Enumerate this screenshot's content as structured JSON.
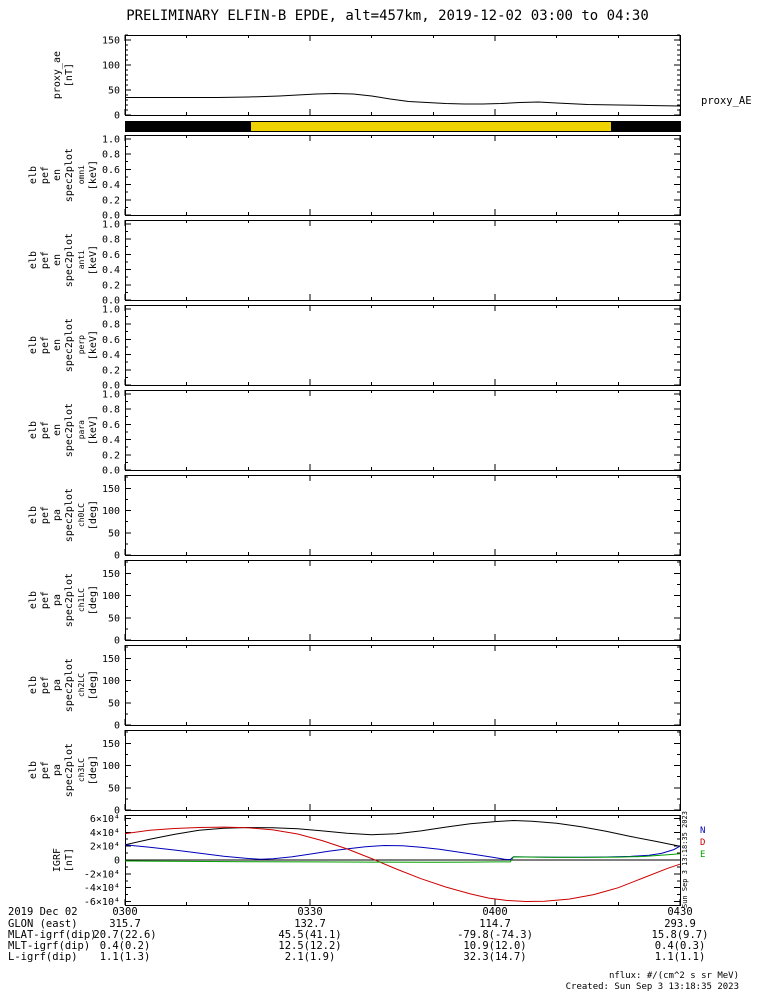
{
  "title": "PRELIMINARY ELFIN-B EPDE, alt=457km, 2019-12-02 03:00 to 04:30",
  "proxy_right_label": "proxy_AE",
  "side_timestamp": "Sun Sep 3 13:18:35 2023",
  "footer": {
    "nflux": "nflux: #/(cm^2 s sr MeV)",
    "created": "Created: Sun Sep  3 13:18:35 2023"
  },
  "colorbar": {
    "segments": [
      {
        "color": "#000000",
        "from": 0.0,
        "to": 0.227
      },
      {
        "color": "#eed202",
        "from": 0.227,
        "to": 0.876
      },
      {
        "color": "#000000",
        "from": 0.876,
        "to": 1.0
      }
    ]
  },
  "xaxis": {
    "xlim": [
      0,
      90
    ],
    "major_minutes": [
      0,
      30,
      60,
      90
    ],
    "minor_step": 10,
    "labels": [
      "0300",
      "0330",
      "0400",
      "0430"
    ],
    "date": "2019 Dec 02"
  },
  "bottom_table": {
    "rows": [
      {
        "label": "2019 Dec 02",
        "values": [
          "0300",
          "0330",
          "0400",
          "0430"
        ]
      },
      {
        "label": "GLON (east)",
        "values": [
          "315.7",
          "132.7",
          "114.7",
          "293.9"
        ]
      },
      {
        "label": "MLAT-igrf(dip)",
        "values": [
          "20.7(22.6)",
          "45.5(41.1)",
          "-79.8(-74.3)",
          "15.8(9.7)"
        ]
      },
      {
        "label": "MLT-igrf(dip)",
        "values": [
          "0.4(0.2)",
          "12.5(12.2)",
          "10.9(12.0)",
          "0.4(0.3)"
        ]
      },
      {
        "label": "L-igrf(dip)",
        "values": [
          "1.1(1.3)",
          "2.1(1.9)",
          "32.3(14.7)",
          "1.1(1.1)"
        ]
      }
    ]
  },
  "chart_data": [
    {
      "name": "proxy_ae",
      "type": "line",
      "title": "proxy_AE",
      "ylabel_lines": [
        "proxy_ae",
        "[nT]"
      ],
      "ylim": [
        0,
        160
      ],
      "yticks": [
        {
          "v": 0,
          "t": "0"
        },
        {
          "v": 50,
          "t": "50"
        },
        {
          "v": 100,
          "t": "100"
        },
        {
          "v": 150,
          "t": "150"
        }
      ],
      "yminor": 10,
      "series": [
        {
          "name": "proxy_AE",
          "label": "",
          "color": "#000000",
          "x": [
            0,
            5,
            10,
            15,
            20,
            25,
            28,
            31,
            34,
            37,
            40,
            43,
            46,
            49,
            52,
            55,
            58,
            61,
            64,
            67,
            70,
            75,
            80,
            85,
            90
          ],
          "y": [
            35,
            35,
            35,
            35,
            36,
            38,
            40,
            42,
            43,
            42,
            38,
            32,
            27,
            25,
            23,
            22,
            22,
            23,
            25,
            26,
            24,
            21,
            20,
            19,
            18
          ]
        }
      ]
    },
    {
      "name": "elb_pef_en_spec2plot_omni",
      "type": "spectrogram",
      "ylabel_lines": [
        "elb",
        "pef",
        "en",
        "spec2plot",
        "omni",
        "[keV]"
      ],
      "ylim": [
        0,
        1.05
      ],
      "yticks": [
        {
          "v": 0,
          "t": "0.0"
        },
        {
          "v": 0.2,
          "t": "0.2"
        },
        {
          "v": 0.4,
          "t": "0.4"
        },
        {
          "v": 0.6,
          "t": "0.6"
        },
        {
          "v": 0.8,
          "t": "0.8"
        },
        {
          "v": 1.0,
          "t": "1.0"
        }
      ],
      "yminor": 0.1,
      "series": []
    },
    {
      "name": "elb_pef_en_spec2plot_anti",
      "type": "spectrogram",
      "ylabel_lines": [
        "elb",
        "pef",
        "en",
        "spec2plot",
        "anti",
        "[keV]"
      ],
      "ylim": [
        0,
        1.05
      ],
      "yticks": [
        {
          "v": 0,
          "t": "0.0"
        },
        {
          "v": 0.2,
          "t": "0.2"
        },
        {
          "v": 0.4,
          "t": "0.4"
        },
        {
          "v": 0.6,
          "t": "0.6"
        },
        {
          "v": 0.8,
          "t": "0.8"
        },
        {
          "v": 1.0,
          "t": "1.0"
        }
      ],
      "yminor": 0.1,
      "series": []
    },
    {
      "name": "elb_pef_en_spec2plot_perp",
      "type": "spectrogram",
      "ylabel_lines": [
        "elb",
        "pef",
        "en",
        "spec2plot",
        "perp",
        "[keV]"
      ],
      "ylim": [
        0,
        1.05
      ],
      "yticks": [
        {
          "v": 0,
          "t": "0.0"
        },
        {
          "v": 0.2,
          "t": "0.2"
        },
        {
          "v": 0.4,
          "t": "0.4"
        },
        {
          "v": 0.6,
          "t": "0.6"
        },
        {
          "v": 0.8,
          "t": "0.8"
        },
        {
          "v": 1.0,
          "t": "1.0"
        }
      ],
      "yminor": 0.1,
      "series": []
    },
    {
      "name": "elb_pef_en_spec2plot_para",
      "type": "spectrogram",
      "ylabel_lines": [
        "elb",
        "pef",
        "en",
        "spec2plot",
        "para",
        "[keV]"
      ],
      "ylim": [
        0,
        1.05
      ],
      "yticks": [
        {
          "v": 0,
          "t": "0.0"
        },
        {
          "v": 0.2,
          "t": "0.2"
        },
        {
          "v": 0.4,
          "t": "0.4"
        },
        {
          "v": 0.6,
          "t": "0.6"
        },
        {
          "v": 0.8,
          "t": "0.8"
        },
        {
          "v": 1.0,
          "t": "1.0"
        }
      ],
      "yminor": 0.1,
      "series": []
    },
    {
      "name": "elb_pef_pa_spec2plot_ch0LC",
      "type": "spectrogram",
      "ylabel_lines": [
        "elb",
        "pef",
        "pa",
        "spec2plot",
        "ch0LC",
        "[deg]"
      ],
      "ylim": [
        0,
        180
      ],
      "yticks": [
        {
          "v": 0,
          "t": "0"
        },
        {
          "v": 50,
          "t": "50"
        },
        {
          "v": 100,
          "t": "100"
        },
        {
          "v": 150,
          "t": "150"
        }
      ],
      "yminor": 25,
      "series": []
    },
    {
      "name": "elb_pef_pa_spec2plot_ch1LC",
      "type": "spectrogram",
      "ylabel_lines": [
        "elb",
        "pef",
        "pa",
        "spec2plot",
        "ch1LC",
        "[deg]"
      ],
      "ylim": [
        0,
        180
      ],
      "yticks": [
        {
          "v": 0,
          "t": "0"
        },
        {
          "v": 50,
          "t": "50"
        },
        {
          "v": 100,
          "t": "100"
        },
        {
          "v": 150,
          "t": "150"
        }
      ],
      "yminor": 25,
      "series": []
    },
    {
      "name": "elb_pef_pa_spec2plot_ch2LC",
      "type": "spectrogram",
      "ylabel_lines": [
        "elb",
        "pef",
        "pa",
        "spec2plot",
        "ch2LC",
        "[deg]"
      ],
      "ylim": [
        0,
        180
      ],
      "yticks": [
        {
          "v": 0,
          "t": "0"
        },
        {
          "v": 50,
          "t": "50"
        },
        {
          "v": 100,
          "t": "100"
        },
        {
          "v": 150,
          "t": "150"
        }
      ],
      "yminor": 25,
      "series": []
    },
    {
      "name": "elb_pef_pa_spec2plot_ch3LC",
      "type": "spectrogram",
      "ylabel_lines": [
        "elb",
        "pef",
        "pa",
        "spec2plot",
        "ch3LC",
        "[deg]"
      ],
      "ylim": [
        0,
        180
      ],
      "yticks": [
        {
          "v": 0,
          "t": "0"
        },
        {
          "v": 50,
          "t": "50"
        },
        {
          "v": 100,
          "t": "100"
        },
        {
          "v": 150,
          "t": "150"
        }
      ],
      "yminor": 25,
      "series": []
    },
    {
      "name": "igrf",
      "type": "line",
      "ylabel_lines": [
        "IGRF",
        "[nT]"
      ],
      "ylim": [
        -65000,
        65000
      ],
      "yticks": [
        {
          "v": 60000,
          "t": "6×10⁴"
        },
        {
          "v": 40000,
          "t": "4×10⁴"
        },
        {
          "v": 20000,
          "t": "2×10⁴"
        },
        {
          "v": 0,
          "t": "0"
        },
        {
          "v": -20000,
          "t": "-2×10⁴"
        },
        {
          "v": -40000,
          "t": "-4×10⁴"
        },
        {
          "v": -60000,
          "t": "-6×10⁴"
        }
      ],
      "yminor": 10000,
      "zero_line": true,
      "series": [
        {
          "name": "B_total",
          "label": "",
          "color": "#000000",
          "x": [
            0,
            4,
            8,
            12,
            16,
            20,
            24,
            28,
            32,
            36,
            40,
            44,
            48,
            52,
            56,
            60,
            63,
            66,
            70,
            74,
            78,
            82,
            86,
            90
          ],
          "y": [
            22000,
            30000,
            37000,
            43000,
            46000,
            47000,
            46500,
            45000,
            42000,
            38500,
            36500,
            38000,
            42000,
            47500,
            52500,
            55500,
            57000,
            56000,
            53000,
            48000,
            41500,
            34000,
            27000,
            20000
          ]
        },
        {
          "name": "B_N",
          "label": "N",
          "color": "#0000bb",
          "x": [
            0,
            4,
            8,
            12,
            16,
            20,
            22,
            24,
            27,
            30,
            33,
            36,
            39,
            42,
            45,
            48,
            51,
            54,
            57,
            60,
            61.5,
            62,
            62.5,
            63,
            66,
            70,
            74,
            78,
            82,
            85,
            87,
            89,
            90
          ],
          "y": [
            22000,
            18500,
            14500,
            10000,
            5500,
            2200,
            1200,
            1800,
            4500,
            8500,
            12500,
            16000,
            19000,
            21000,
            20500,
            18500,
            15500,
            11500,
            7500,
            3500,
            1200,
            700,
            700,
            4800,
            4300,
            4100,
            4100,
            4300,
            5200,
            7000,
            9500,
            15000,
            20000
          ]
        },
        {
          "name": "B_D",
          "label": "D",
          "color": "#cc0000",
          "x": [
            0,
            4,
            8,
            12,
            16,
            20,
            24,
            28,
            32,
            36,
            40,
            44,
            48,
            52,
            56,
            59,
            62,
            65,
            68,
            72,
            76,
            80,
            84,
            88,
            90
          ],
          "y": [
            38000,
            43000,
            45500,
            47000,
            47500,
            46500,
            43500,
            37500,
            28000,
            16000,
            2000,
            -13000,
            -27000,
            -39000,
            -49000,
            -55000,
            -58500,
            -60000,
            -59500,
            -56500,
            -50000,
            -40000,
            -26000,
            -12000,
            -6000
          ]
        },
        {
          "name": "B_E",
          "label": "E",
          "color": "#00a000",
          "x": [
            0,
            10,
            20,
            30,
            40,
            50,
            56,
            60,
            62,
            62.5,
            63,
            68,
            74,
            80,
            84,
            88,
            90
          ],
          "y": [
            -1500,
            -2000,
            -2500,
            -2800,
            -3000,
            -3200,
            -3000,
            -2800,
            -2700,
            -2700,
            4500,
            4000,
            3800,
            4200,
            5000,
            7500,
            9000
          ]
        }
      ]
    }
  ]
}
